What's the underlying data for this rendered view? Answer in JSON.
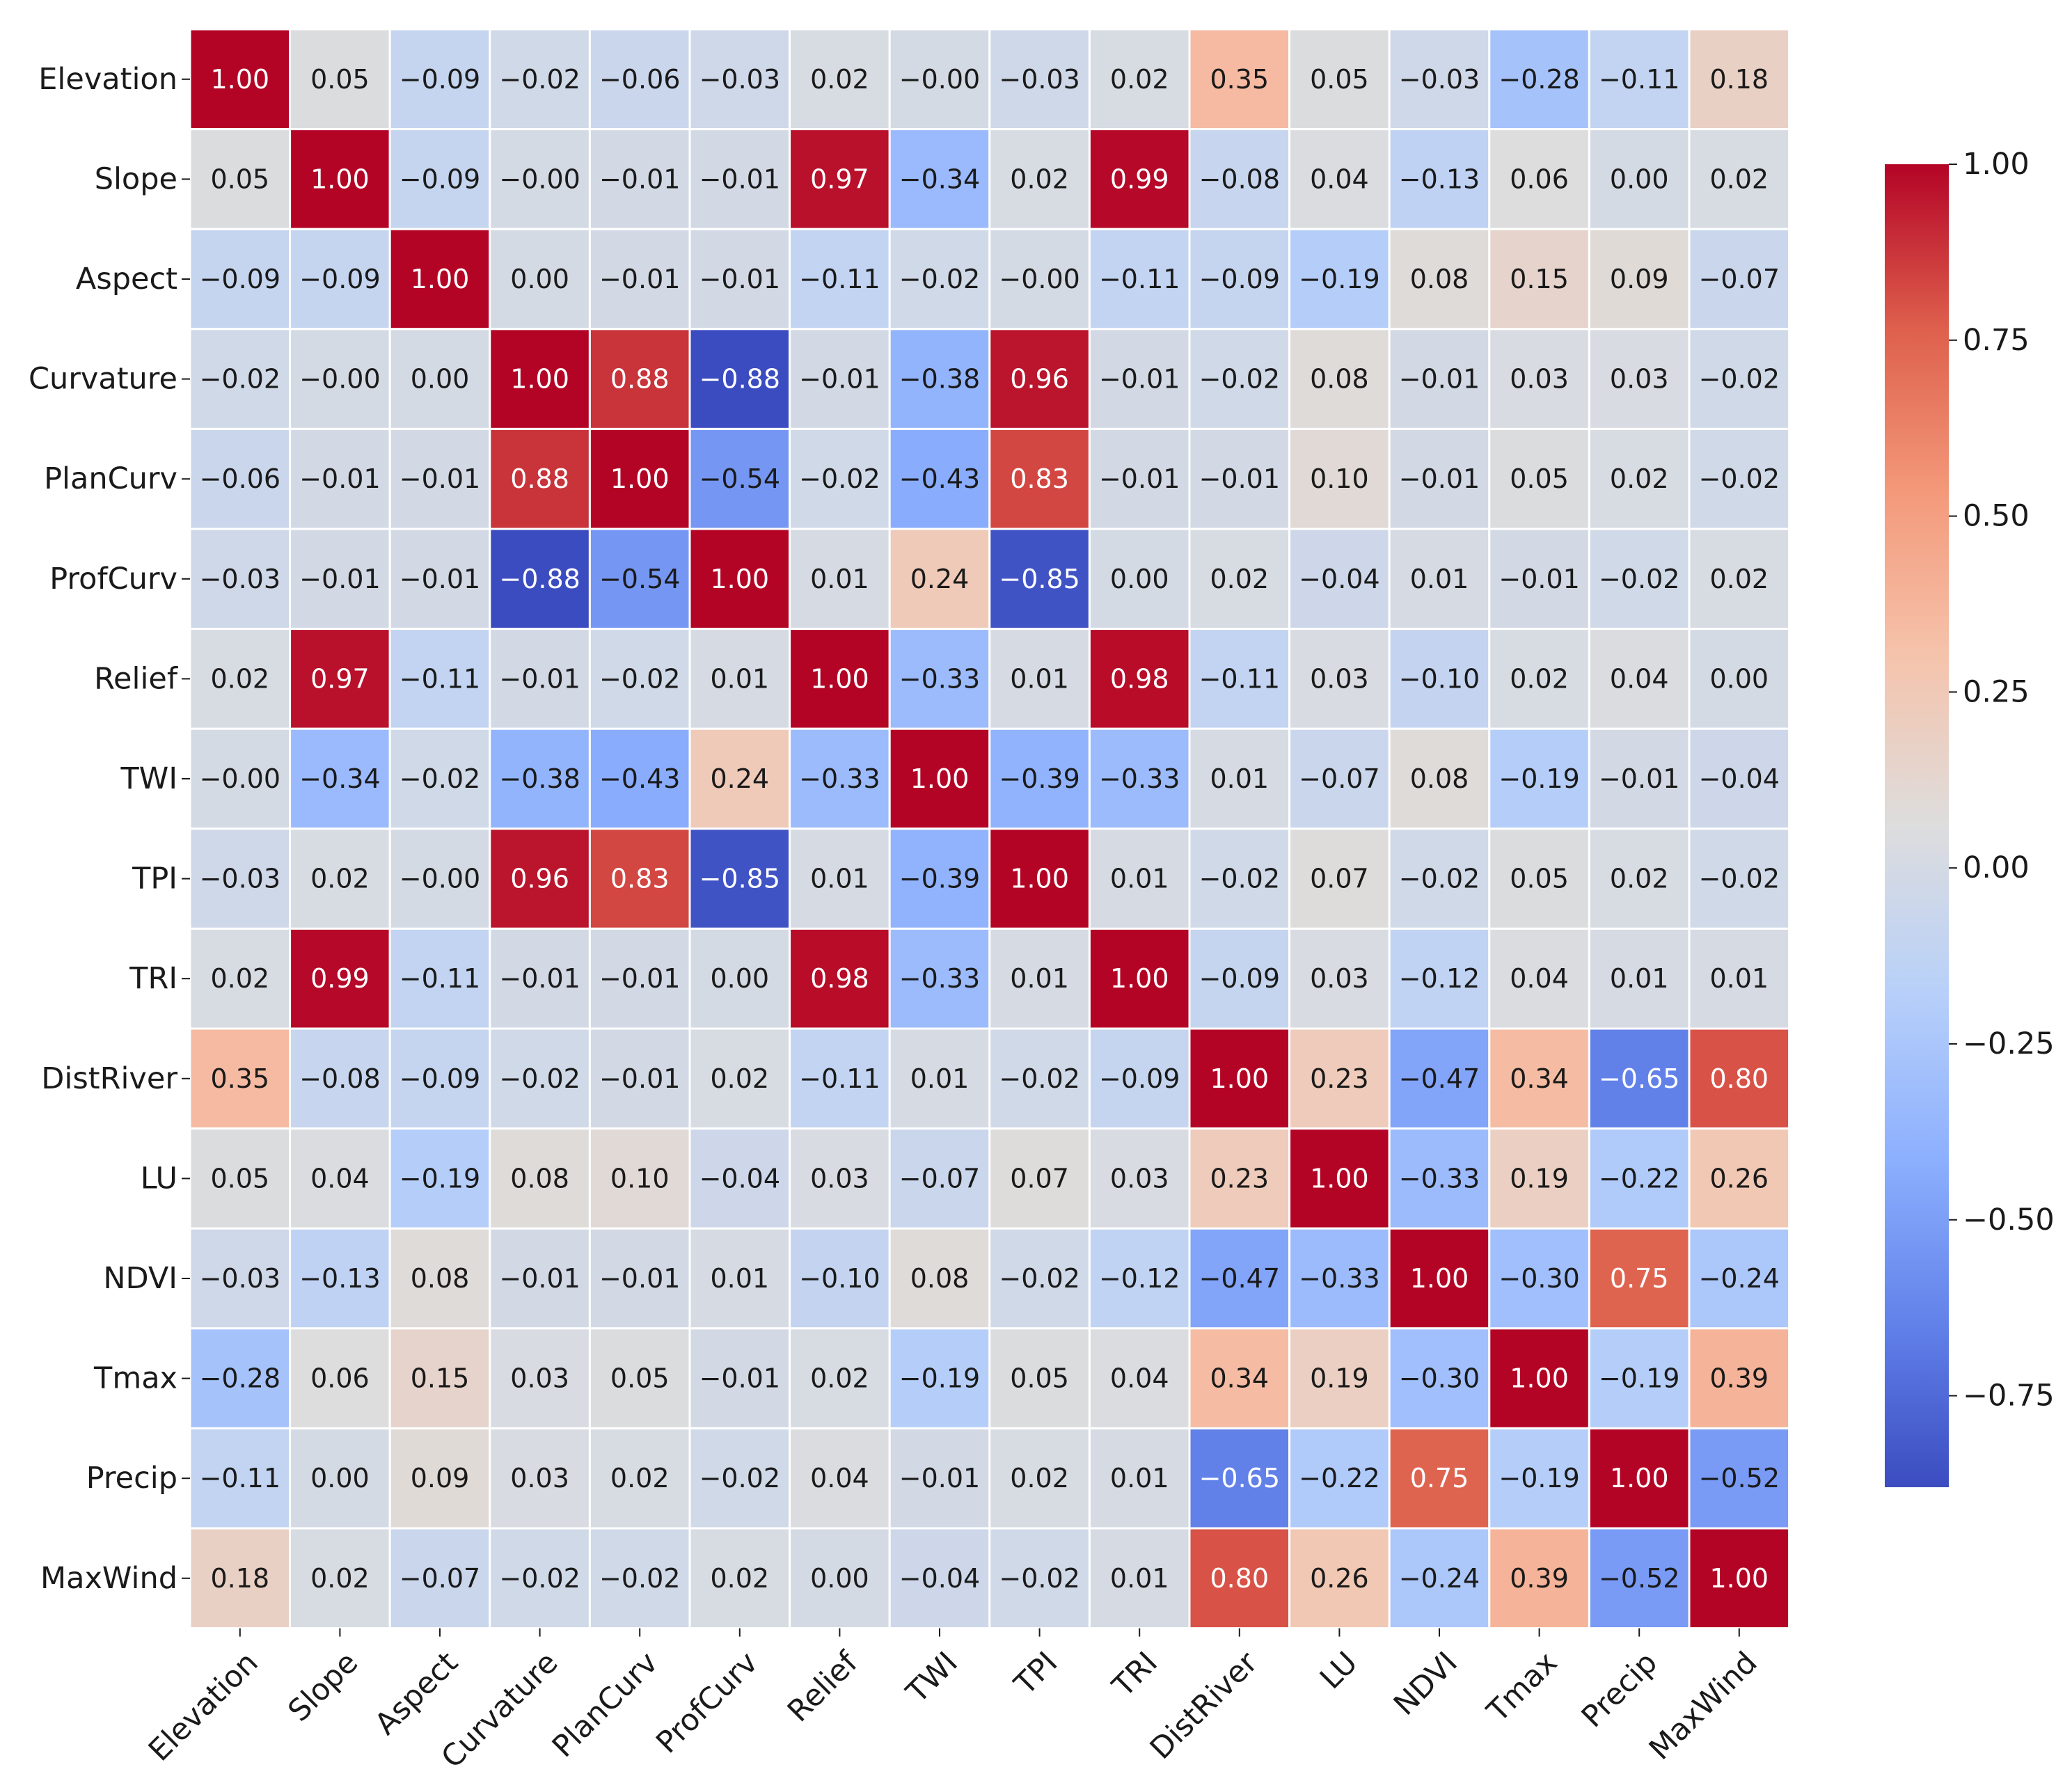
{
  "chart_data": {
    "type": "heatmap",
    "title": "",
    "xlabel": "",
    "ylabel": "",
    "variables": [
      "Elevation",
      "Slope",
      "Aspect",
      "Curvature",
      "PlanCurv",
      "ProfCurv",
      "Relief",
      "TWI",
      "TPI",
      "TRI",
      "DistRiver",
      "LU",
      "NDVI",
      "Tmax",
      "Precip",
      "MaxWind"
    ],
    "matrix": [
      [
        1.0,
        0.05,
        -0.09,
        -0.02,
        -0.06,
        -0.03,
        0.02,
        -0.0,
        -0.03,
        0.02,
        0.35,
        0.05,
        -0.03,
        -0.28,
        -0.11,
        0.18
      ],
      [
        0.05,
        1.0,
        -0.09,
        -0.0,
        -0.01,
        -0.01,
        0.97,
        -0.34,
        0.02,
        0.99,
        -0.08,
        0.04,
        -0.13,
        0.06,
        0.0,
        0.02
      ],
      [
        -0.09,
        -0.09,
        1.0,
        0.0,
        -0.01,
        -0.01,
        -0.11,
        -0.02,
        -0.0,
        -0.11,
        -0.09,
        -0.19,
        0.08,
        0.15,
        0.09,
        -0.07
      ],
      [
        -0.02,
        -0.0,
        0.0,
        1.0,
        0.88,
        -0.88,
        -0.01,
        -0.38,
        0.96,
        -0.01,
        -0.02,
        0.08,
        -0.01,
        0.03,
        0.03,
        -0.02
      ],
      [
        -0.06,
        -0.01,
        -0.01,
        0.88,
        1.0,
        -0.54,
        -0.02,
        -0.43,
        0.83,
        -0.01,
        -0.01,
        0.1,
        -0.01,
        0.05,
        0.02,
        -0.02
      ],
      [
        -0.03,
        -0.01,
        -0.01,
        -0.88,
        -0.54,
        1.0,
        0.01,
        0.24,
        -0.85,
        0.0,
        0.02,
        -0.04,
        0.01,
        -0.01,
        -0.02,
        0.02
      ],
      [
        0.02,
        0.97,
        -0.11,
        -0.01,
        -0.02,
        0.01,
        1.0,
        -0.33,
        0.01,
        0.98,
        -0.11,
        0.03,
        -0.1,
        0.02,
        0.04,
        0.0
      ],
      [
        -0.0,
        -0.34,
        -0.02,
        -0.38,
        -0.43,
        0.24,
        -0.33,
        1.0,
        -0.39,
        -0.33,
        0.01,
        -0.07,
        0.08,
        -0.19,
        -0.01,
        -0.04
      ],
      [
        -0.03,
        0.02,
        -0.0,
        0.96,
        0.83,
        -0.85,
        0.01,
        -0.39,
        1.0,
        0.01,
        -0.02,
        0.07,
        -0.02,
        0.05,
        0.02,
        -0.02
      ],
      [
        0.02,
        0.99,
        -0.11,
        -0.01,
        -0.01,
        0.0,
        0.98,
        -0.33,
        0.01,
        1.0,
        -0.09,
        0.03,
        -0.12,
        0.04,
        0.01,
        0.01
      ],
      [
        0.35,
        -0.08,
        -0.09,
        -0.02,
        -0.01,
        0.02,
        -0.11,
        0.01,
        -0.02,
        -0.09,
        1.0,
        0.23,
        -0.47,
        0.34,
        -0.65,
        0.8
      ],
      [
        0.05,
        0.04,
        -0.19,
        0.08,
        0.1,
        -0.04,
        0.03,
        -0.07,
        0.07,
        0.03,
        0.23,
        1.0,
        -0.33,
        0.19,
        -0.22,
        0.26
      ],
      [
        -0.03,
        -0.13,
        0.08,
        -0.01,
        -0.01,
        0.01,
        -0.1,
        0.08,
        -0.02,
        -0.12,
        -0.47,
        -0.33,
        1.0,
        -0.3,
        0.75,
        -0.24
      ],
      [
        -0.28,
        0.06,
        0.15,
        0.03,
        0.05,
        -0.01,
        0.02,
        -0.19,
        0.05,
        0.04,
        0.34,
        0.19,
        -0.3,
        1.0,
        -0.19,
        0.39
      ],
      [
        -0.11,
        0.0,
        0.09,
        0.03,
        0.02,
        -0.02,
        0.04,
        -0.01,
        0.02,
        0.01,
        -0.65,
        -0.22,
        0.75,
        -0.19,
        1.0,
        -0.52
      ],
      [
        0.18,
        0.02,
        -0.07,
        -0.02,
        -0.02,
        0.02,
        0.0,
        -0.04,
        -0.02,
        0.01,
        0.8,
        0.26,
        -0.24,
        0.39,
        -0.52,
        1.0
      ]
    ],
    "value_format": "2 decimals, unicode minus sign",
    "colormap": "coolwarm",
    "vmin": -0.88,
    "vmax": 1.0,
    "colorbar": {
      "ticks": [
        1.0,
        0.75,
        0.5,
        0.25,
        0.0,
        -0.25,
        -0.5,
        -0.75
      ],
      "tick_labels": [
        "1.00",
        "0.75",
        "0.50",
        "0.25",
        "0.00",
        "−0.25",
        "−0.50",
        "−0.75"
      ],
      "position": "right"
    },
    "grid": true,
    "colors": {
      "grid_line": "#ffffff",
      "axis_text": "#1a1a1a",
      "light_text": "#ffffff",
      "dark_text": "#1a1a1a"
    }
  }
}
